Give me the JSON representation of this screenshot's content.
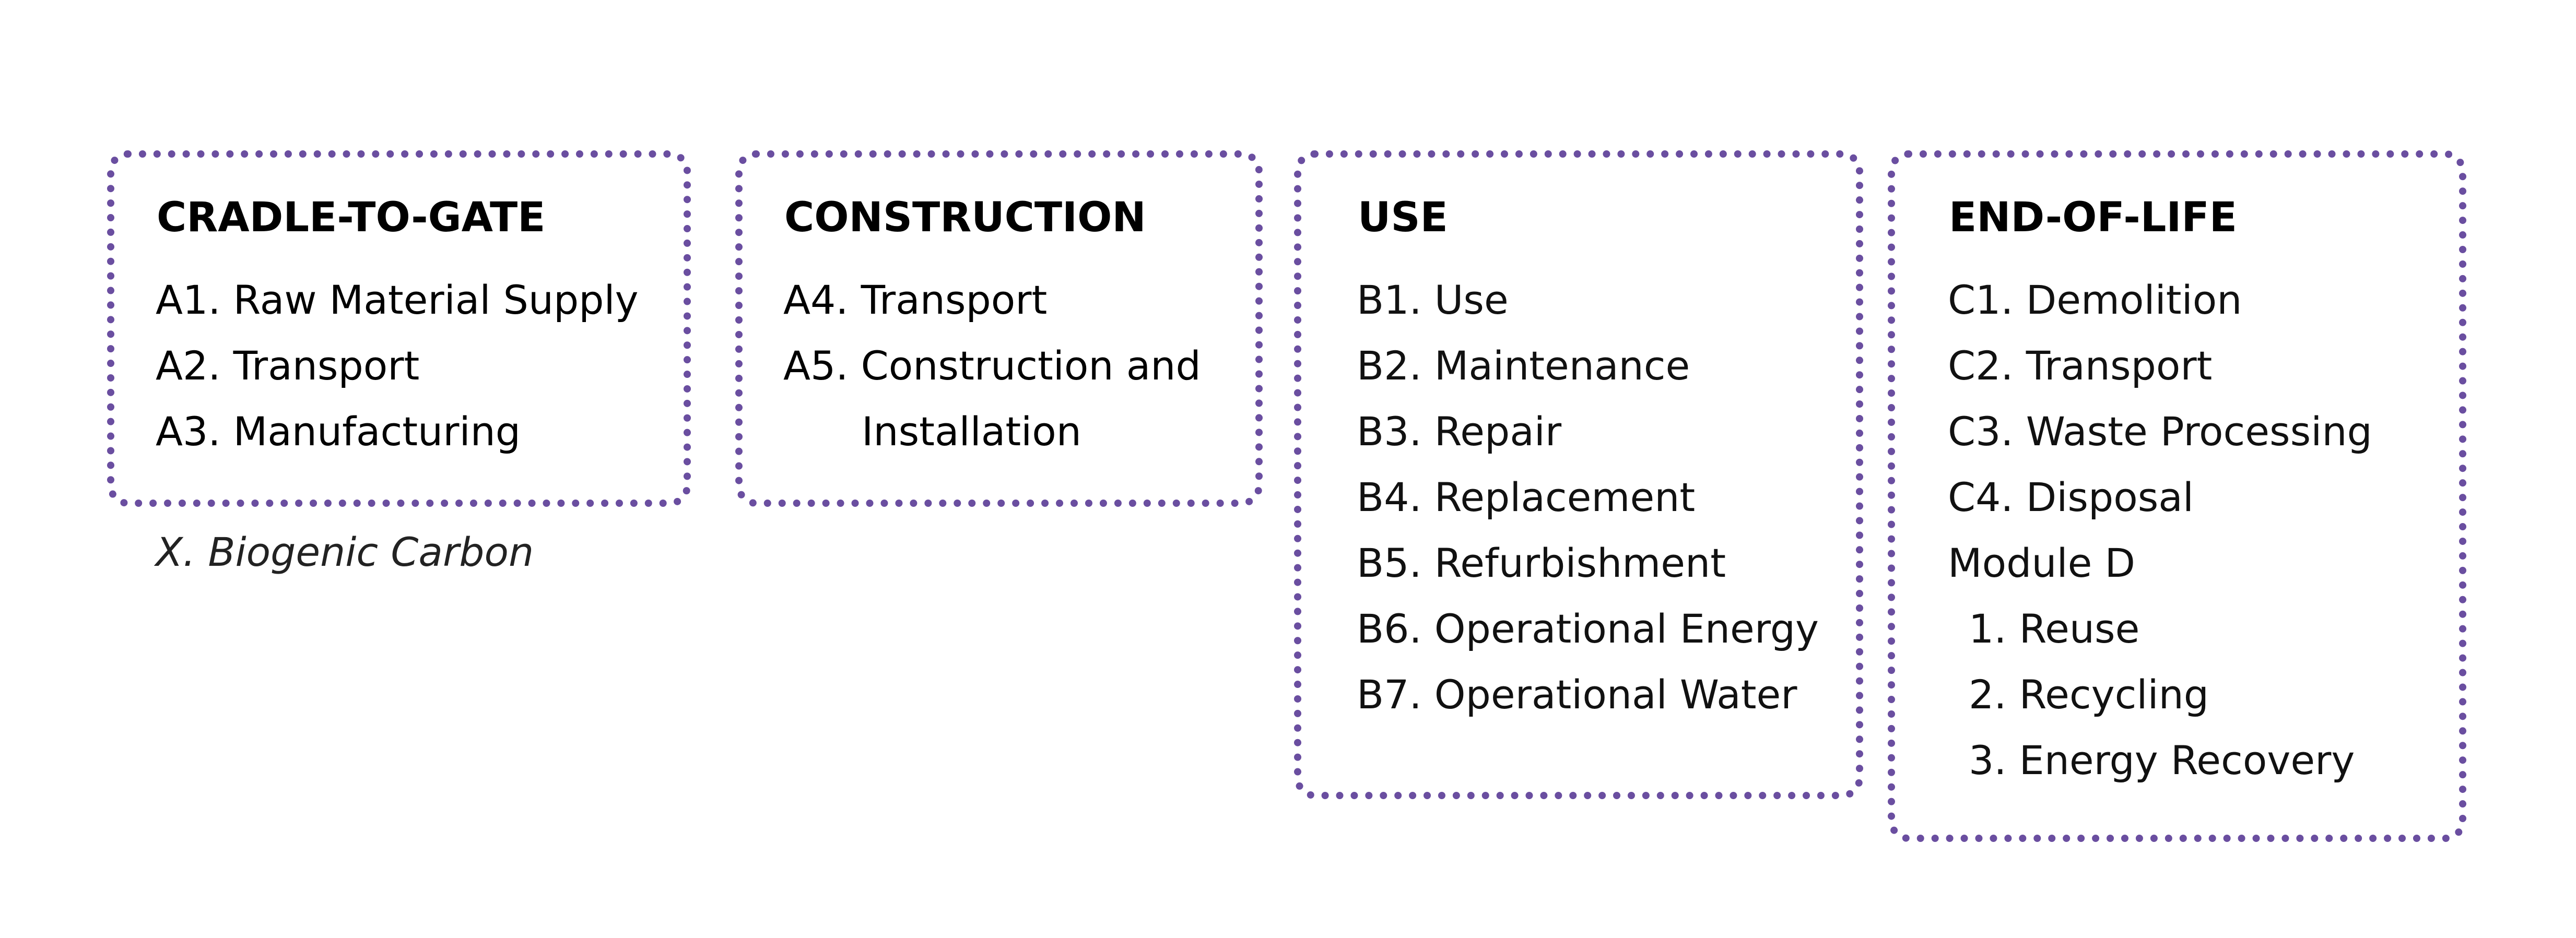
{
  "accent_color": "#6a4ea0",
  "stages": [
    {
      "title": "CRADLE-TO-GATE",
      "items": [
        "A1. Raw Material Supply",
        "A2. Transport",
        "A3. Manufacturing"
      ]
    },
    {
      "title": "CONSTRUCTION",
      "items": [
        "A4. Transport",
        "A5. Construction and",
        "Installation"
      ]
    },
    {
      "title": "USE",
      "items": [
        "B1. Use",
        "B2. Maintenance",
        "B3. Repair",
        "B4. Replacement",
        "B5. Refurbishment",
        "B6. Operational Energy",
        "B7. Operational Water"
      ]
    },
    {
      "title": "END-OF-LIFE",
      "items": [
        "C1. Demolition",
        "C2. Transport",
        "C3. Waste Processing",
        "C4. Disposal",
        "Module D",
        "1. Reuse",
        "2. Recycling",
        "3. Energy Recovery"
      ]
    }
  ],
  "note": "X. Biogenic Carbon"
}
